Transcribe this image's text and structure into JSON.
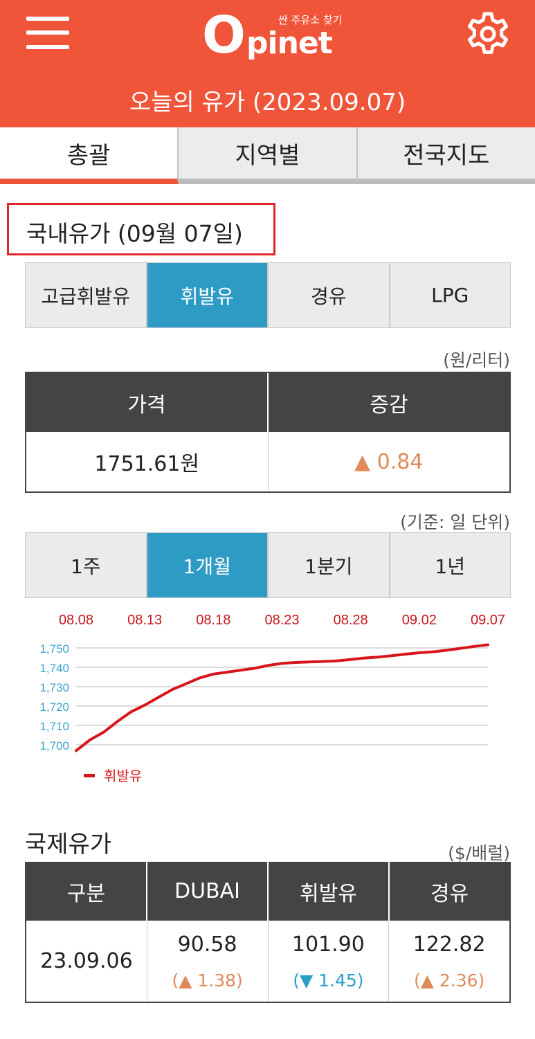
{
  "header": {
    "logo_tagline": "싼 주유소 찾기",
    "logo_o": "O",
    "logo_rest": "pinet",
    "title": "오늘의 유가 (2023.09.07)",
    "menu_icon": "hamburger-menu-icon",
    "settings_icon": "gear-icon"
  },
  "tabs": [
    {
      "label": "총괄",
      "active": true
    },
    {
      "label": "지역별",
      "active": false
    },
    {
      "label": "전국지도",
      "active": false
    }
  ],
  "domestic": {
    "title": "국내유가 (09월 07일)",
    "fuel_types": [
      {
        "label": "고급휘발유",
        "active": false
      },
      {
        "label": "휘발유",
        "active": true
      },
      {
        "label": "경유",
        "active": false
      },
      {
        "label": "LPG",
        "active": false
      }
    ],
    "unit": "(원/리터)",
    "table": {
      "price_header": "가격",
      "change_header": "증감",
      "price_value": "1751.61원",
      "change_value": "▲ 0.84"
    },
    "basis": "(기준: 일 단위)",
    "periods": [
      {
        "label": "1주",
        "active": false
      },
      {
        "label": "1개월",
        "active": true
      },
      {
        "label": "1분기",
        "active": false
      },
      {
        "label": "1년",
        "active": false
      }
    ]
  },
  "chart_data": {
    "type": "line",
    "x_tick_labels": [
      "08.08",
      "08.13",
      "08.18",
      "08.23",
      "08.28",
      "09.02",
      "09.07"
    ],
    "y_tick_labels": [
      "1,750",
      "1,740",
      "1,730",
      "1,720",
      "1,710",
      "1,700"
    ],
    "ylim": [
      1700,
      1750
    ],
    "grid": true,
    "legend_position": "bottom-left",
    "series_color": "#d8151c",
    "x_label_color": "#c8161d",
    "y_label_color": "#3aa3cc",
    "series": [
      {
        "name": "휘발유",
        "x": [
          "08.08",
          "08.09",
          "08.10",
          "08.11",
          "08.12",
          "08.13",
          "08.14",
          "08.15",
          "08.16",
          "08.17",
          "08.18",
          "08.19",
          "08.20",
          "08.21",
          "08.22",
          "08.23",
          "08.24",
          "08.25",
          "08.26",
          "08.27",
          "08.28",
          "08.29",
          "08.30",
          "08.31",
          "09.01",
          "09.02",
          "09.03",
          "09.04",
          "09.05",
          "09.06",
          "09.07"
        ],
        "values": [
          1697.0,
          1702.5,
          1706.5,
          1712.0,
          1717.0,
          1720.5,
          1724.5,
          1728.5,
          1731.5,
          1734.5,
          1736.5,
          1737.5,
          1738.5,
          1739.5,
          1741.0,
          1742.0,
          1742.5,
          1742.8,
          1743.0,
          1743.3,
          1744.0,
          1744.8,
          1745.3,
          1746.0,
          1746.8,
          1747.5,
          1748.0,
          1748.8,
          1749.8,
          1750.8,
          1751.61
        ]
      }
    ]
  },
  "international": {
    "title": "국제유가",
    "unit": "($/배럴)",
    "headers": [
      "구분",
      "DUBAI",
      "휘발유",
      "경유"
    ],
    "date": "23.09.06",
    "items": [
      {
        "value": "90.58",
        "change": "(▲ 1.38)",
        "direction": "up"
      },
      {
        "value": "101.90",
        "change": "(▼ 1.45)",
        "direction": "down"
      },
      {
        "value": "122.82",
        "change": "(▲ 2.36)",
        "direction": "up"
      }
    ]
  }
}
